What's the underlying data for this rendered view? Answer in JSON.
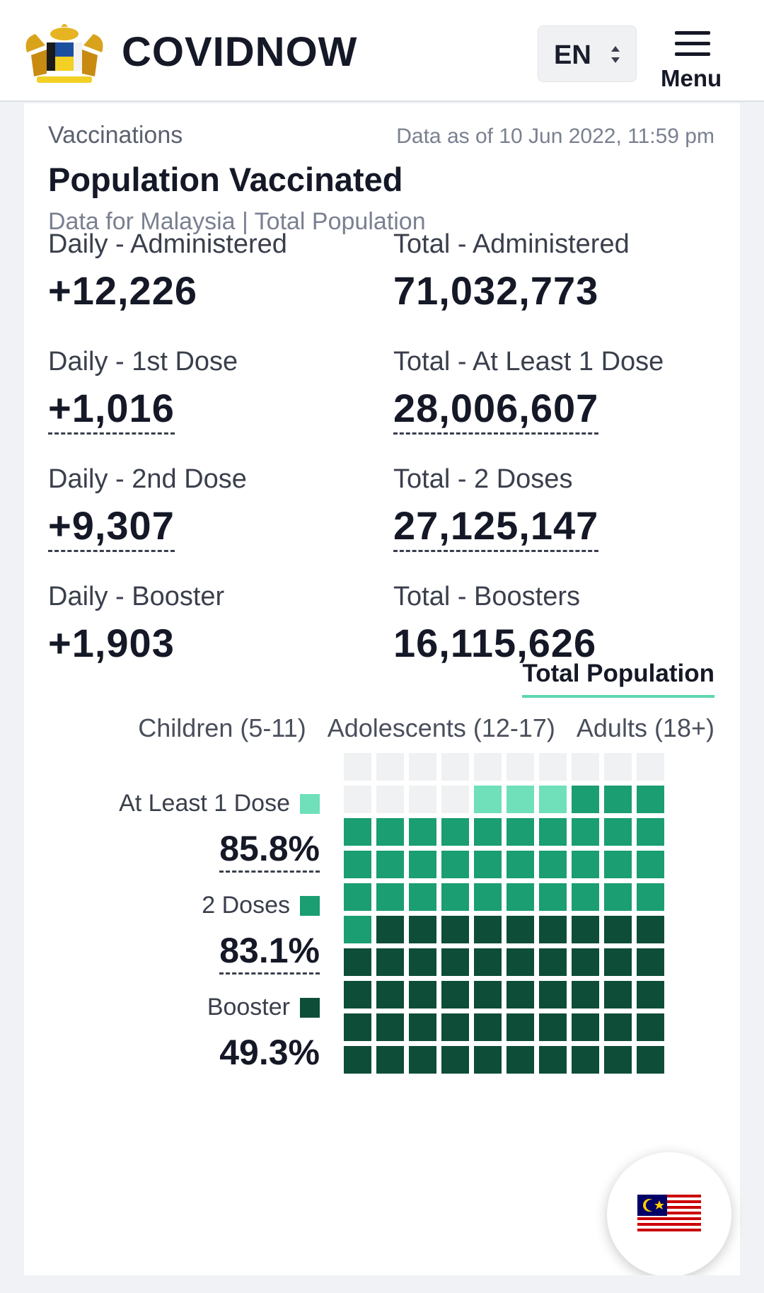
{
  "header": {
    "brand": "COVIDNOW",
    "language": "EN",
    "menu_label": "Menu"
  },
  "card": {
    "section": "Vaccinations",
    "as_of": "Data as of 10 Jun 2022, 11:59 pm",
    "title": "Population Vaccinated",
    "subtitle": "Data for Malaysia | Total Population"
  },
  "stats": [
    {
      "label": "Daily - Administered",
      "value": "+12,226"
    },
    {
      "label": "Total - Administered",
      "value": "71,032,773"
    },
    {
      "label": "Daily - 1st Dose",
      "value": "+1,016"
    },
    {
      "label": "Total - At Least 1 Dose",
      "value": "28,006,607"
    },
    {
      "label": "Daily - 2nd Dose",
      "value": "+9,307"
    },
    {
      "label": "Total - 2 Doses",
      "value": "27,125,147"
    },
    {
      "label": "Daily - Booster",
      "value": "+1,903"
    },
    {
      "label": "Total - Boosters",
      "value": "16,115,626"
    }
  ],
  "tabs": {
    "active": "Total Population",
    "filters": [
      "Children (5-11)",
      "Adolescents (12-17)",
      "Adults (18+)"
    ]
  },
  "legend": [
    {
      "label": "At Least 1 Dose",
      "value": "85.8%",
      "color": "#6fe0b9"
    },
    {
      "label": "2 Doses",
      "value": "83.1%",
      "color": "#1a9e72"
    },
    {
      "label": "Booster",
      "value": "49.3%",
      "color": "#0e4d37"
    }
  ],
  "waffle": {
    "at_least_1_dose_percent": 85.8,
    "two_doses_percent": 83.1,
    "booster_percent": 49.3,
    "colors": {
      "empty": "#f0f1f3",
      "at_least_1_dose": "#6fe0b9",
      "two_doses": "#1a9e72",
      "booster": "#0e4d37"
    }
  },
  "icons": {
    "crest": "malaysia-coat-of-arms-icon",
    "menu": "hamburger-menu-icon",
    "lang_arrows": "sort-arrows-icon",
    "flag": "malaysia-flag-icon"
  }
}
